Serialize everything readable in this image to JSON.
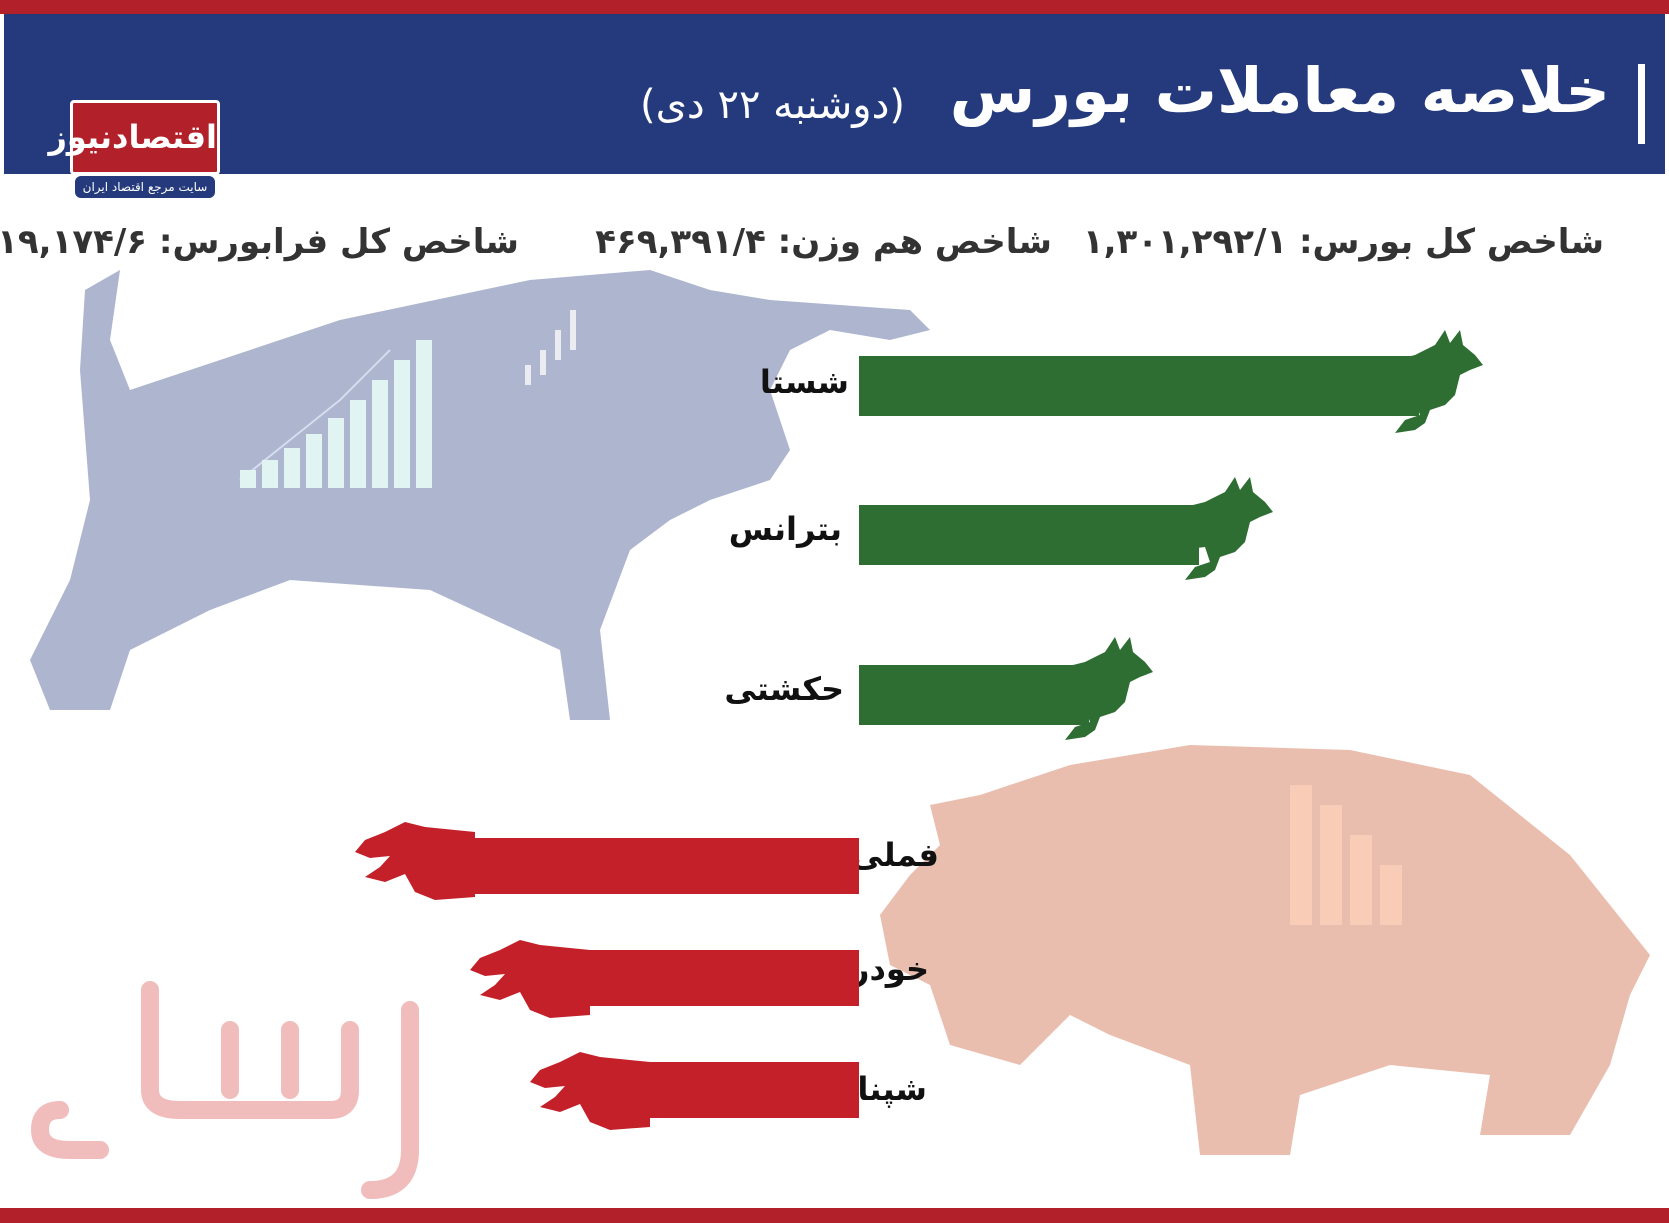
{
  "header": {
    "title": "خلاصه معاملات بورس",
    "subtitle": "(دوشنبه ۲۲ دی)",
    "logo_text": "اقتصادنیوز",
    "logo_tagline": "سایت مرجع اقتصاد ایران"
  },
  "indices": {
    "total": "شاخص کل بورس: ۱,۳۰۱,۲۹۲/۱",
    "equal_weight": "شاخص هم وزن: ۴۶۹,۳۹۱/۴",
    "farabourse": "شاخص کل فرابورس: ۱۹,۱۷۴/۶"
  },
  "gainers": [
    {
      "symbol": "شستا",
      "icon": "bull-icon"
    },
    {
      "symbol": "بترانس",
      "icon": "bull-icon"
    },
    {
      "symbol": "حکشتی",
      "icon": "bull-icon"
    }
  ],
  "losers": [
    {
      "symbol": "فملی",
      "icon": "bear-icon"
    },
    {
      "symbol": "خودرو",
      "icon": "bear-icon"
    },
    {
      "symbol": "شپنا",
      "icon": "bear-icon"
    }
  ],
  "colors": {
    "header_bg": "#243a7d",
    "accent_red": "#b2202a",
    "gainer_green": "#2e6e32",
    "loser_red": "#c3202a"
  }
}
